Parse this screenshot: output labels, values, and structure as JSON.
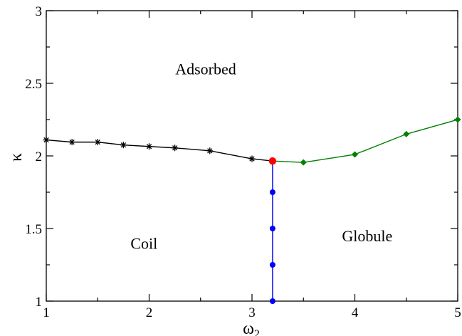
{
  "chart_data": {
    "type": "line",
    "xlabel": "ω",
    "xlabel_sub": "2",
    "ylabel": "κ",
    "xlim": [
      1,
      5
    ],
    "ylim": [
      1,
      3
    ],
    "xticks": [
      1,
      2,
      3,
      4,
      5
    ],
    "yticks": [
      1,
      1.5,
      2,
      2.5,
      3
    ],
    "xtick_labels": [
      "1",
      "2",
      "3",
      "4",
      "5"
    ],
    "ytick_labels": [
      "1",
      "1.5",
      "2",
      "2.5",
      "3"
    ],
    "grid": false,
    "region_labels": [
      {
        "text": "Adsorbed",
        "x": 2.55,
        "y": 2.6
      },
      {
        "text": "Coil",
        "x": 1.95,
        "y": 1.4
      },
      {
        "text": "Globule",
        "x": 4.12,
        "y": 1.45
      }
    ],
    "series": [
      {
        "color": "#000000",
        "marker": "star",
        "x": [
          1.0,
          1.25,
          1.5,
          1.75,
          2.0,
          2.25,
          2.59,
          3.0,
          3.2
        ],
        "y": [
          2.11,
          2.095,
          2.095,
          2.075,
          2.065,
          2.055,
          2.035,
          1.98,
          1.965
        ]
      },
      {
        "color": "#008000",
        "marker": "diamond",
        "x": [
          3.2,
          3.5,
          4.0,
          4.5,
          5.0
        ],
        "y": [
          1.965,
          1.955,
          2.01,
          2.15,
          2.25
        ]
      },
      {
        "color": "#0000ff",
        "marker": "circle",
        "x": [
          3.2,
          3.2,
          3.2,
          3.2,
          3.2
        ],
        "y": [
          1.0,
          1.25,
          1.5,
          1.75,
          1.965
        ]
      }
    ],
    "special_point": {
      "x": 3.2,
      "y": 1.965,
      "color": "#ff0000",
      "marker": "circle"
    }
  }
}
